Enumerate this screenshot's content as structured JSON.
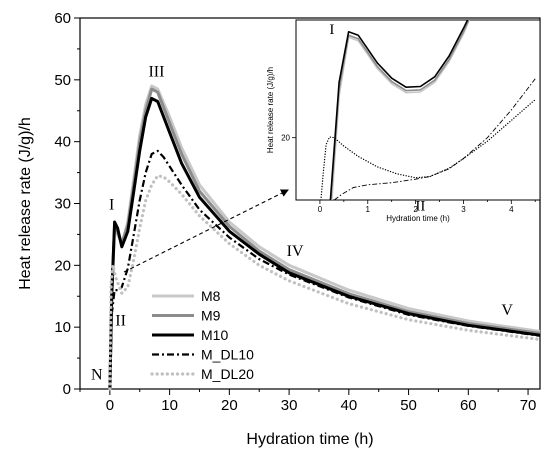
{
  "chart_data": [
    {
      "type": "line",
      "xlabel": "Hydration time (h)",
      "ylabel": "Heat release rate (J/g)/h",
      "xlim": [
        -5,
        72
      ],
      "ylim": [
        0,
        60
      ],
      "xticks": [
        0,
        10,
        20,
        30,
        40,
        50,
        60,
        70
      ],
      "yticks": [
        0,
        10,
        20,
        30,
        40,
        50,
        60
      ],
      "annotations": [
        {
          "text": "N",
          "x": -2.2,
          "y": 1.5
        },
        {
          "text": "I",
          "x": 0.3,
          "y": 29
        },
        {
          "text": "II",
          "x": 1.8,
          "y": 10.3
        },
        {
          "text": "III",
          "x": 7.8,
          "y": 50.5
        },
        {
          "text": "IV",
          "x": 31,
          "y": 21.5
        },
        {
          "text": "V",
          "x": 66.5,
          "y": 12
        }
      ],
      "legend_position": "lower-left",
      "series": [
        {
          "name": "M8",
          "color": "#c8c8c8",
          "style": "solid",
          "x": [
            0,
            0.3,
            0.8,
            1.3,
            2,
            3,
            4,
            5,
            6,
            7,
            8,
            10,
            12,
            15,
            20,
            25,
            30,
            40,
            50,
            60,
            72
          ],
          "y": [
            0,
            15,
            26,
            25,
            23.5,
            27,
            34,
            41,
            46,
            49,
            48.5,
            44,
            39,
            33,
            27,
            23,
            20,
            16,
            13,
            11,
            9.3
          ]
        },
        {
          "name": "M9",
          "color": "#8c8c8c",
          "style": "solid",
          "x": [
            0,
            0.3,
            0.8,
            1.3,
            2,
            3,
            4,
            5,
            6,
            7,
            8,
            10,
            12,
            15,
            20,
            25,
            30,
            40,
            50,
            60,
            72
          ],
          "y": [
            0,
            15,
            26.5,
            25.5,
            23.5,
            26.5,
            33,
            40,
            45,
            48.5,
            48,
            43,
            38,
            32,
            26.3,
            22.3,
            19.3,
            15.4,
            12.5,
            10.6,
            9
          ]
        },
        {
          "name": "M10",
          "color": "#000000",
          "style": "solid",
          "x": [
            0,
            0.3,
            0.8,
            1.3,
            2,
            3,
            4,
            5,
            6,
            7,
            8,
            10,
            12,
            15,
            20,
            25,
            30,
            40,
            50,
            60,
            72
          ],
          "y": [
            0,
            15,
            27,
            26,
            23,
            25.5,
            32,
            38.5,
            44,
            47,
            46.5,
            41.5,
            36.5,
            31,
            25.5,
            21.8,
            18.8,
            15,
            12.2,
            10.3,
            8.7
          ]
        },
        {
          "name": "M_DL10",
          "color": "#000000",
          "style": "dashdot",
          "x": [
            0,
            0.3,
            0.8,
            1.5,
            2,
            3,
            4,
            5,
            6,
            7,
            8,
            9,
            10,
            12,
            15,
            20,
            25,
            30,
            40,
            50,
            60,
            72
          ],
          "y": [
            0,
            12,
            16,
            16,
            16.5,
            19.5,
            25,
            30.5,
            35,
            38,
            38.5,
            37.5,
            36,
            33,
            29,
            24.5,
            21,
            18.5,
            14.8,
            12,
            10.2,
            8.6
          ]
        },
        {
          "name": "M_DL20",
          "color": "#c0c0c0",
          "style": "dotted",
          "x": [
            0,
            0.2,
            0.5,
            1,
            2,
            3,
            4,
            5,
            6,
            7,
            8,
            9,
            10,
            12,
            15,
            20,
            25,
            30,
            40,
            50,
            60,
            72
          ],
          "y": [
            0,
            17,
            20,
            18,
            15.5,
            16.5,
            21,
            26,
            30.5,
            33,
            34.5,
            34.3,
            33.5,
            31.5,
            28,
            23.5,
            20,
            17.5,
            13.8,
            11.2,
            9.5,
            8
          ]
        }
      ]
    },
    {
      "type": "line",
      "xlabel": "Hydration time (h)",
      "ylabel": "Heat release rate (J/g)/h",
      "xlim": [
        -0.5,
        4.6
      ],
      "ylim": [
        11,
        37
      ],
      "xticks": [
        0,
        1,
        2,
        3,
        4
      ],
      "yticks": [
        20
      ],
      "annotations": [
        {
          "text": "I",
          "x": 0.25,
          "y": 35
        },
        {
          "text": "II",
          "x": 2.1,
          "y": 9.5
        }
      ],
      "series": [
        {
          "name": "M8",
          "color": "#c8c8c8",
          "style": "solid",
          "x": [
            0.25,
            0.4,
            0.6,
            0.8,
            1.0,
            1.2,
            1.5,
            1.8,
            2.1,
            2.4,
            2.7,
            3.0,
            3.3
          ],
          "y": [
            11,
            26,
            34.5,
            34,
            32,
            30,
            27.8,
            26.5,
            26.6,
            28,
            31,
            35,
            40
          ]
        },
        {
          "name": "M9",
          "color": "#8c8c8c",
          "style": "solid",
          "x": [
            0.23,
            0.4,
            0.6,
            0.8,
            1.0,
            1.2,
            1.5,
            1.8,
            2.1,
            2.4,
            2.7,
            3.0,
            3.3
          ],
          "y": [
            11,
            27,
            34.8,
            34.3,
            32.3,
            30.3,
            28.1,
            26.8,
            26.9,
            28.3,
            31.3,
            35.3,
            40
          ]
        },
        {
          "name": "M10",
          "color": "#000000",
          "style": "solid",
          "x": [
            0.22,
            0.4,
            0.6,
            0.8,
            1.0,
            1.2,
            1.5,
            1.8,
            2.1,
            2.4,
            2.7,
            3.0,
            3.3
          ],
          "y": [
            11,
            28,
            35.3,
            34.8,
            32.8,
            30.8,
            28.6,
            27.3,
            27.4,
            28.8,
            31.8,
            35.8,
            40
          ]
        },
        {
          "name": "M_DL10",
          "color": "#000000",
          "style": "dashdot",
          "x": [
            0.3,
            0.45,
            0.7,
            1.0,
            1.5,
            2.0,
            2.3,
            2.7,
            3.0,
            3.5,
            4.0,
            4.5
          ],
          "y": [
            11,
            11.8,
            12.8,
            13.2,
            13.5,
            14,
            14.4,
            15.5,
            17,
            20,
            24,
            28.5
          ]
        },
        {
          "name": "M_DL20",
          "color": "#000000",
          "style": "dotted",
          "x": [
            0.02,
            0.07,
            0.13,
            0.2,
            0.3,
            0.5,
            0.8,
            1.2,
            1.6,
            2.0,
            2.3,
            2.7,
            3.0,
            3.5,
            4.0,
            4.5
          ],
          "y": [
            11,
            15,
            19,
            20.1,
            20,
            18.8,
            17.3,
            15.8,
            14.8,
            14.2,
            14.4,
            15.6,
            17,
            19.5,
            22.5,
            25.5
          ]
        }
      ]
    }
  ]
}
